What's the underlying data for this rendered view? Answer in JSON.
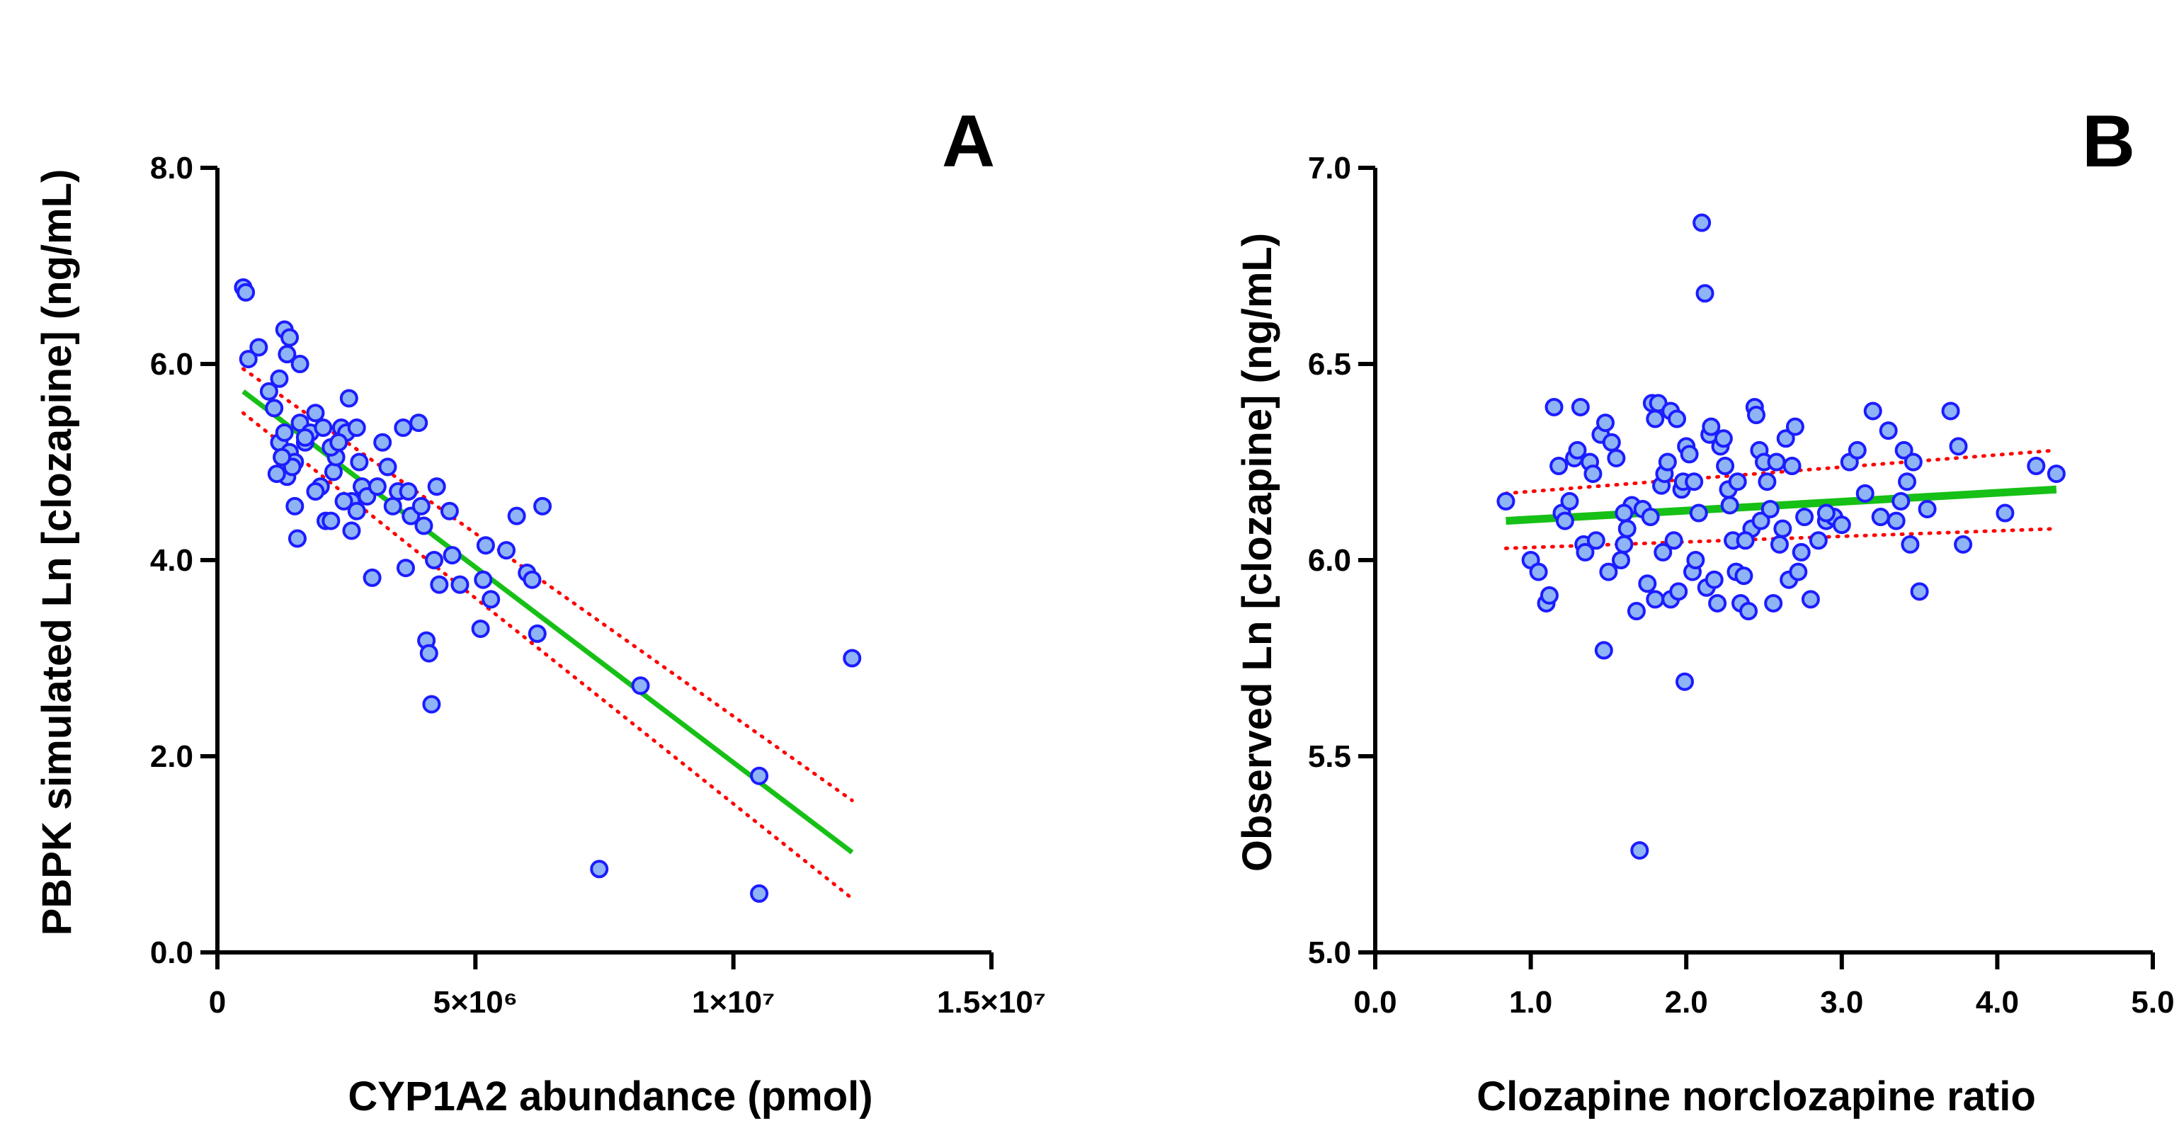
{
  "chart_data": [
    {
      "type": "scatter",
      "panel_label": "A",
      "xlabel": "CYP1A2 abundance (pmol)",
      "ylabel": "PBPK simulated Ln [clozapine] (ng/mL)",
      "xlim": [
        0,
        15000000
      ],
      "ylim": [
        0,
        8
      ],
      "x_ticks": [
        0,
        5000000,
        10000000,
        15000000
      ],
      "x_tick_labels": [
        "0",
        "5×10⁶",
        "1×10⁷",
        "1.5×10⁷"
      ],
      "y_ticks": [
        0,
        2,
        4,
        6,
        8
      ],
      "y_tick_labels": [
        "0.0",
        "2.0",
        "4.0",
        "6.0",
        "8.0"
      ],
      "grid": false,
      "colors": {
        "point_fill": "#8eb4f5",
        "point_edge": "#1c1cff",
        "fit_line": "#16c016",
        "ci_line": "#ff0000"
      },
      "points": [
        [
          500000,
          6.78
        ],
        [
          550000,
          6.73
        ],
        [
          800000,
          6.17
        ],
        [
          600000,
          6.05
        ],
        [
          1000000,
          5.72
        ],
        [
          1200000,
          5.85
        ],
        [
          1300000,
          6.35
        ],
        [
          1400000,
          6.27
        ],
        [
          1350000,
          6.1
        ],
        [
          1600000,
          6.0
        ],
        [
          1100000,
          5.55
        ],
        [
          1200000,
          5.2
        ],
        [
          1300000,
          5.3
        ],
        [
          1400000,
          5.1
        ],
        [
          1500000,
          5.0
        ],
        [
          1350000,
          4.85
        ],
        [
          1450000,
          4.95
        ],
        [
          1500000,
          4.55
        ],
        [
          1550000,
          4.22
        ],
        [
          1600000,
          5.4
        ],
        [
          1700000,
          5.2
        ],
        [
          1800000,
          5.3
        ],
        [
          1900000,
          5.5
        ],
        [
          2000000,
          4.75
        ],
        [
          2100000,
          4.4
        ],
        [
          2200000,
          4.4
        ],
        [
          2250000,
          4.9
        ],
        [
          2300000,
          5.05
        ],
        [
          2400000,
          5.35
        ],
        [
          2500000,
          5.3
        ],
        [
          2550000,
          5.65
        ],
        [
          2600000,
          4.6
        ],
        [
          2700000,
          4.5
        ],
        [
          2600000,
          4.3
        ],
        [
          2700000,
          5.35
        ],
        [
          2800000,
          4.75
        ],
        [
          2900000,
          4.65
        ],
        [
          3000000,
          3.82
        ],
        [
          3100000,
          4.75
        ],
        [
          3200000,
          5.2
        ],
        [
          3300000,
          4.95
        ],
        [
          3400000,
          4.55
        ],
        [
          3500000,
          4.7
        ],
        [
          3600000,
          5.35
        ],
        [
          3650000,
          3.92
        ],
        [
          3700000,
          4.7
        ],
        [
          3750000,
          4.45
        ],
        [
          3900000,
          5.4
        ],
        [
          3950000,
          4.55
        ],
        [
          4000000,
          4.35
        ],
        [
          4050000,
          3.18
        ],
        [
          4100000,
          3.05
        ],
        [
          4150000,
          2.53
        ],
        [
          4200000,
          4.0
        ],
        [
          4250000,
          4.75
        ],
        [
          4300000,
          3.75
        ],
        [
          4500000,
          4.5
        ],
        [
          4550000,
          4.05
        ],
        [
          4700000,
          3.75
        ],
        [
          5100000,
          3.3
        ],
        [
          5150000,
          3.8
        ],
        [
          5200000,
          4.15
        ],
        [
          5300000,
          3.6
        ],
        [
          5600000,
          4.1
        ],
        [
          5800000,
          4.45
        ],
        [
          6000000,
          3.87
        ],
        [
          6100000,
          3.8
        ],
        [
          6200000,
          3.25
        ],
        [
          6300000,
          4.55
        ],
        [
          7400000,
          0.85
        ],
        [
          8200000,
          2.72
        ],
        [
          10500000,
          1.8
        ],
        [
          10500000,
          0.6
        ],
        [
          12300000,
          3.0
        ],
        [
          1150000,
          4.88
        ],
        [
          1250000,
          5.05
        ],
        [
          1700000,
          5.25
        ],
        [
          1900000,
          4.7
        ],
        [
          2050000,
          5.35
        ],
        [
          2200000,
          5.15
        ],
        [
          2350000,
          5.2
        ],
        [
          2450000,
          4.6
        ],
        [
          2750000,
          5.0
        ]
      ],
      "fit_line": {
        "x": [
          500000,
          12300000
        ],
        "y": [
          5.72,
          1.02
        ]
      },
      "ci_upper": {
        "x": [
          500000,
          12300000
        ],
        "y": [
          5.95,
          1.55
        ]
      },
      "ci_lower": {
        "x": [
          500000,
          12300000
        ],
        "y": [
          5.5,
          0.55
        ]
      }
    },
    {
      "type": "scatter",
      "panel_label": "B",
      "xlabel": "Clozapine norclozapine ratio",
      "ylabel": "Observed Ln [clozapine] (ng/mL)",
      "xlim": [
        0,
        5
      ],
      "ylim": [
        5,
        7
      ],
      "x_ticks": [
        0,
        1,
        2,
        3,
        4,
        5
      ],
      "x_tick_labels": [
        "0.0",
        "1.0",
        "2.0",
        "3.0",
        "4.0",
        "5.0"
      ],
      "y_ticks": [
        5.0,
        5.5,
        6.0,
        6.5,
        7.0
      ],
      "y_tick_labels": [
        "5.0",
        "5.5",
        "6.0",
        "6.5",
        "7.0"
      ],
      "grid": false,
      "colors": {
        "point_fill": "#8eb4f5",
        "point_edge": "#1c1cff",
        "fit_line": "#16c016",
        "ci_line": "#ff0000"
      },
      "points": [
        [
          0.84,
          6.15
        ],
        [
          1.0,
          6.0
        ],
        [
          1.05,
          5.97
        ],
        [
          1.1,
          5.89
        ],
        [
          1.12,
          5.91
        ],
        [
          1.15,
          6.39
        ],
        [
          1.18,
          6.24
        ],
        [
          1.2,
          6.12
        ],
        [
          1.22,
          6.1
        ],
        [
          1.25,
          6.15
        ],
        [
          1.28,
          6.26
        ],
        [
          1.3,
          6.28
        ],
        [
          1.32,
          6.39
        ],
        [
          1.34,
          6.04
        ],
        [
          1.35,
          6.02
        ],
        [
          1.38,
          6.25
        ],
        [
          1.4,
          6.22
        ],
        [
          1.42,
          6.05
        ],
        [
          1.45,
          6.32
        ],
        [
          1.47,
          5.77
        ],
        [
          1.48,
          6.35
        ],
        [
          1.5,
          5.97
        ],
        [
          1.52,
          6.3
        ],
        [
          1.55,
          6.26
        ],
        [
          1.58,
          6.0
        ],
        [
          1.6,
          6.04
        ],
        [
          1.62,
          6.08
        ],
        [
          1.65,
          6.14
        ],
        [
          1.68,
          5.87
        ],
        [
          1.7,
          5.26
        ],
        [
          1.72,
          6.13
        ],
        [
          1.75,
          5.94
        ],
        [
          1.77,
          6.11
        ],
        [
          1.78,
          6.4
        ],
        [
          1.8,
          6.36
        ],
        [
          1.8,
          5.9
        ],
        [
          1.82,
          6.4
        ],
        [
          1.84,
          6.19
        ],
        [
          1.85,
          6.02
        ],
        [
          1.86,
          6.22
        ],
        [
          1.88,
          6.25
        ],
        [
          1.9,
          6.38
        ],
        [
          1.9,
          5.9
        ],
        [
          1.92,
          6.05
        ],
        [
          1.94,
          6.36
        ],
        [
          1.95,
          5.92
        ],
        [
          1.97,
          6.18
        ],
        [
          1.98,
          6.2
        ],
        [
          1.99,
          5.69
        ],
        [
          2.0,
          6.29
        ],
        [
          2.02,
          6.27
        ],
        [
          2.04,
          5.97
        ],
        [
          2.05,
          6.2
        ],
        [
          2.06,
          6.0
        ],
        [
          2.08,
          6.12
        ],
        [
          2.1,
          6.86
        ],
        [
          2.12,
          6.68
        ],
        [
          2.13,
          5.93
        ],
        [
          2.15,
          6.32
        ],
        [
          2.16,
          6.34
        ],
        [
          2.18,
          5.95
        ],
        [
          2.2,
          5.89
        ],
        [
          2.22,
          6.29
        ],
        [
          2.24,
          6.31
        ],
        [
          2.25,
          6.24
        ],
        [
          2.27,
          6.18
        ],
        [
          2.28,
          6.14
        ],
        [
          2.3,
          6.05
        ],
        [
          2.32,
          5.97
        ],
        [
          2.33,
          6.2
        ],
        [
          2.35,
          5.89
        ],
        [
          2.37,
          5.96
        ],
        [
          2.4,
          5.87
        ],
        [
          2.42,
          6.08
        ],
        [
          2.44,
          6.39
        ],
        [
          2.45,
          6.37
        ],
        [
          2.47,
          6.28
        ],
        [
          2.48,
          6.1
        ],
        [
          2.5,
          6.25
        ],
        [
          2.52,
          6.2
        ],
        [
          2.54,
          6.13
        ],
        [
          2.56,
          5.89
        ],
        [
          2.58,
          6.25
        ],
        [
          2.6,
          6.04
        ],
        [
          2.62,
          6.08
        ],
        [
          2.64,
          6.31
        ],
        [
          2.66,
          5.95
        ],
        [
          2.68,
          6.24
        ],
        [
          2.7,
          6.34
        ],
        [
          2.72,
          5.97
        ],
        [
          2.74,
          6.02
        ],
        [
          2.76,
          6.11
        ],
        [
          2.8,
          5.9
        ],
        [
          2.85,
          6.05
        ],
        [
          2.9,
          6.1
        ],
        [
          2.95,
          6.11
        ],
        [
          3.0,
          6.09
        ],
        [
          3.05,
          6.25
        ],
        [
          3.1,
          6.28
        ],
        [
          3.15,
          6.17
        ],
        [
          3.2,
          6.38
        ],
        [
          3.25,
          6.11
        ],
        [
          3.3,
          6.33
        ],
        [
          3.35,
          6.1
        ],
        [
          3.4,
          6.28
        ],
        [
          3.42,
          6.2
        ],
        [
          3.44,
          6.04
        ],
        [
          3.46,
          6.25
        ],
        [
          3.5,
          5.92
        ],
        [
          3.55,
          6.13
        ],
        [
          3.7,
          6.38
        ],
        [
          3.75,
          6.29
        ],
        [
          3.78,
          6.04
        ],
        [
          4.05,
          6.12
        ],
        [
          4.25,
          6.24
        ],
        [
          4.38,
          6.22
        ],
        [
          1.6,
          6.12
        ],
        [
          2.38,
          6.05
        ],
        [
          2.9,
          6.12
        ],
        [
          3.38,
          6.15
        ]
      ],
      "fit_line": {
        "x": [
          0.84,
          4.38
        ],
        "y": [
          6.1,
          6.18
        ]
      },
      "ci_upper": {
        "x": [
          0.84,
          4.38
        ],
        "y": [
          6.17,
          6.28
        ]
      },
      "ci_lower": {
        "x": [
          0.84,
          4.38
        ],
        "y": [
          6.03,
          6.08
        ]
      }
    }
  ]
}
